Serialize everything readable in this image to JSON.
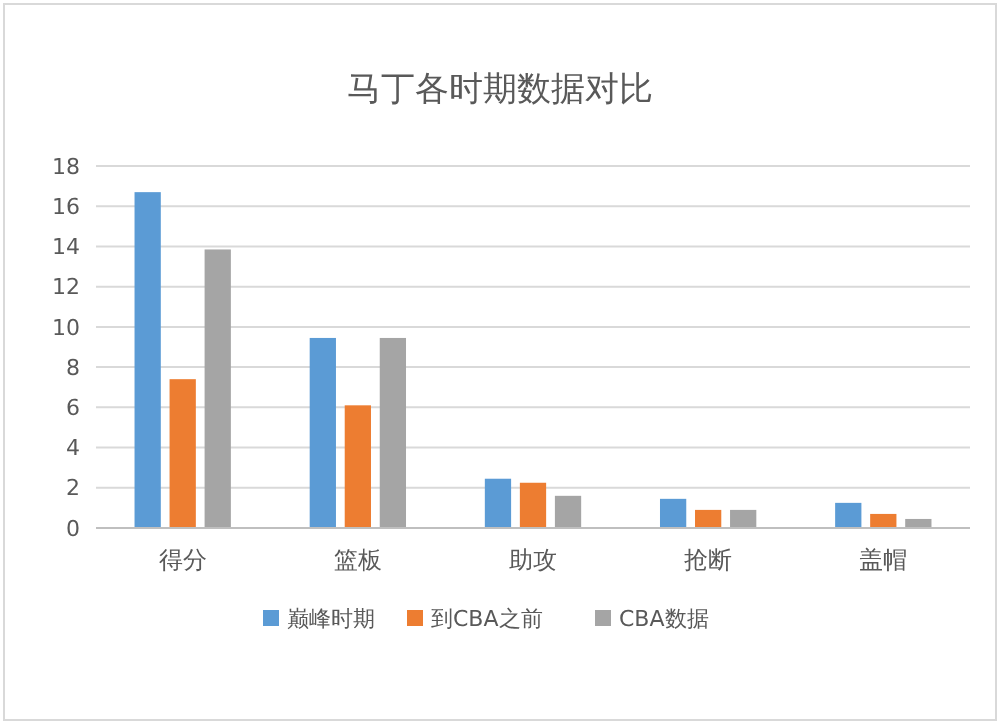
{
  "chart_data": {
    "type": "bar",
    "title": "马丁各时期数据对比",
    "categories": [
      "得分",
      "篮板",
      "助攻",
      "抢断",
      "盖帽"
    ],
    "series": [
      {
        "name": "巅峰时期",
        "color": "#5b9bd5",
        "values": [
          16.7,
          9.45,
          2.45,
          1.45,
          1.25
        ]
      },
      {
        "name": "到CBA之前",
        "color": "#ed7d31",
        "values": [
          7.4,
          6.1,
          2.25,
          0.9,
          0.7
        ]
      },
      {
        "name": "CBA数据",
        "color": "#a5a5a5",
        "values": [
          13.85,
          9.45,
          1.6,
          0.9,
          0.45
        ]
      }
    ],
    "ylim": [
      0,
      18
    ],
    "yticks": [
      0,
      2,
      4,
      6,
      8,
      10,
      12,
      14,
      16,
      18
    ],
    "grid": "y",
    "legend": "bottom"
  }
}
